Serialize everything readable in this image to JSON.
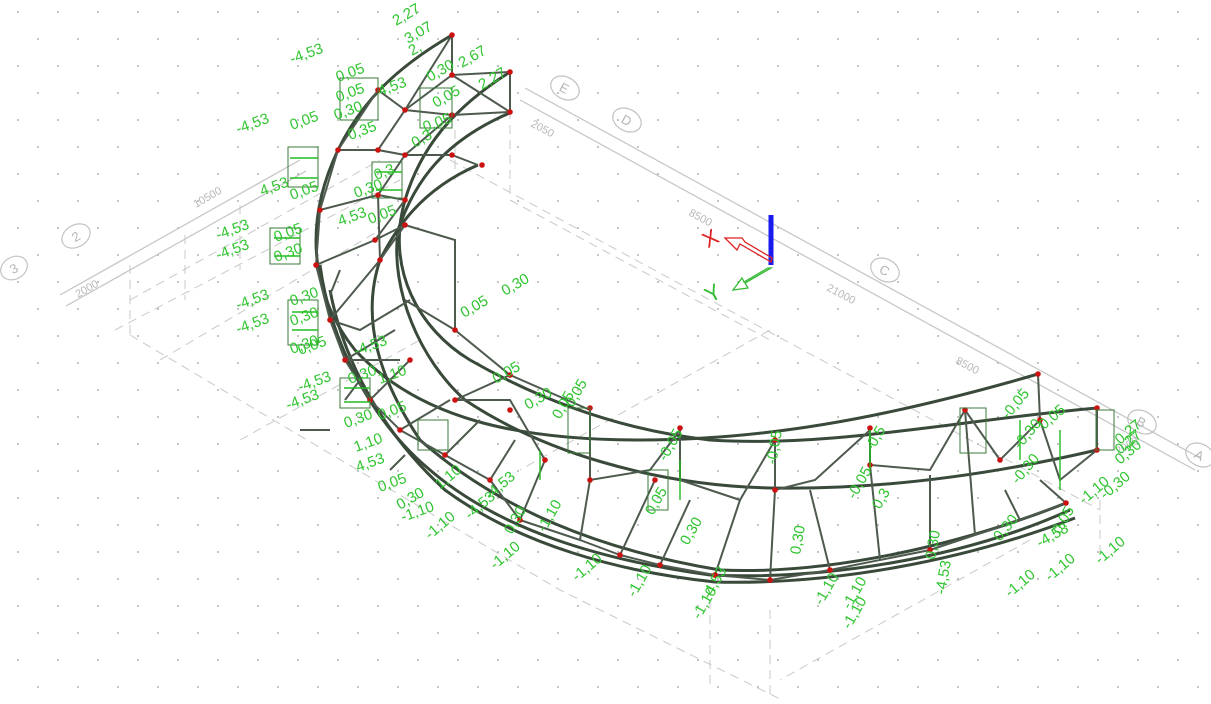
{
  "grid_bubbles": {
    "b1": "E",
    "b2": "D",
    "b3": "C",
    "b4": "B",
    "b5": "A",
    "b6": "2",
    "b7": "3"
  },
  "dimensions": {
    "d1": "2050",
    "d2": "8500",
    "d3": "21000",
    "d4": "8500",
    "d5": "2000",
    "d6": "10500",
    "d7": "2000"
  },
  "ucs": {
    "x_label": "X",
    "y_label": "Y",
    "colors": {
      "x": "#dd2222",
      "y": "#33bb33",
      "z": "#1a1aee"
    }
  },
  "loads": {
    "labels": [
      "2,27",
      "3,07",
      "2,",
      "-4,53",
      "0,05",
      "4,53",
      "2,67",
      "0,30",
      "2,27",
      "0,05",
      "0,30",
      "-4,53",
      "0,05",
      "0,35",
      "0,05",
      "0,05",
      "0,3",
      "4,53",
      "0,05",
      "0,30",
      "0,3",
      "-4,53",
      "-4,53",
      "0,05",
      "0,30",
      "0,05",
      "4,53",
      "-4,53",
      "0,30",
      "0,30",
      "-4,53",
      "0,05",
      "-4,53",
      "0,30",
      "0,30",
      "1,10",
      "-4,53",
      "-4,53",
      "0,05",
      "0,30",
      "1,10",
      "4,53",
      "0,05",
      "0,30",
      "-1,10",
      "1,10",
      "-4,53",
      "-1,10",
      "0,05",
      "0,30",
      "0,05",
      "0,30",
      "0,05",
      "0,05",
      "-4,53",
      "0,30",
      "-1,10",
      "-1,10",
      "-1,10",
      "-1,10",
      "-4,53",
      "0,05",
      "-0,05",
      "0,30",
      "-0,05",
      "0,30",
      "-1,10",
      "-1,10",
      "-0,5",
      "0,3",
      "-4,53",
      "0,30",
      "-1,10",
      "-1,10",
      "-0,05",
      "-0,30",
      "-4,53",
      "-0,30",
      "-1,10",
      "0,05",
      "0,27",
      "0,30",
      "-1,10",
      "-1,10",
      "0,27",
      "-0,30",
      "-1,10",
      "-0,05",
      "0,05",
      "0,30"
    ]
  },
  "colors": {
    "load": "#2fc52f",
    "member": "#4d5a4d",
    "node": "#cc1111",
    "grid": "#c4c4c4"
  }
}
